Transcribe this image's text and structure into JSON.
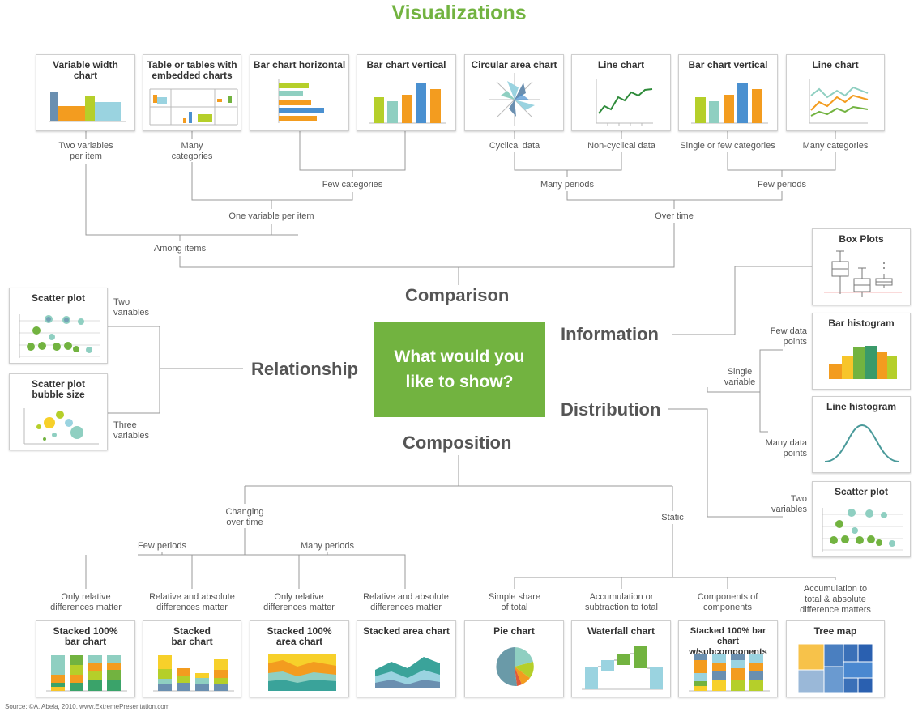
{
  "title": "Visualizations",
  "center": {
    "line1": "What would you",
    "line2": "like to show?"
  },
  "categories": {
    "comparison": "Comparison",
    "relationship": "Relationship",
    "information": "Information",
    "distribution": "Distribution",
    "composition": "Composition"
  },
  "cards": {
    "variable_width": {
      "line1": "Variable width",
      "line2": "chart"
    },
    "table_embedded": {
      "line1": "Table or tables with",
      "line2": "embedded charts"
    },
    "bar_horizontal": {
      "line1": "Bar chart horizontal"
    },
    "bar_vertical_few": {
      "line1": "Bar chart vertical"
    },
    "circular_area": {
      "line1": "Circular area chart"
    },
    "line_single": {
      "line1": "Line chart"
    },
    "bar_vertical_time": {
      "line1": "Bar chart vertical"
    },
    "line_many": {
      "line1": "Line chart"
    },
    "box_plots": {
      "line1": "Box Plots"
    },
    "bar_histogram": {
      "line1": "Bar histogram"
    },
    "line_histogram": {
      "line1": "Line histogram"
    },
    "scatter_dist": {
      "line1": "Scatter plot"
    },
    "scatter_rel": {
      "line1": "Scatter plot"
    },
    "bubble": {
      "line1": "Scatter plot",
      "line2": "bubble size"
    },
    "stacked100_bar": {
      "line1": "Stacked 100%",
      "line2": "bar chart"
    },
    "stacked_bar": {
      "line1": "Stacked",
      "line2": "bar chart"
    },
    "stacked100_area": {
      "line1": "Stacked 100%",
      "line2": "area chart"
    },
    "stacked_area": {
      "line1": "Stacked area chart"
    },
    "pie": {
      "line1": "Pie chart"
    },
    "waterfall": {
      "line1": "Waterfall chart"
    },
    "stacked100_sub": {
      "line1": "Stacked 100% bar chart",
      "line2": "w/subcomponents"
    },
    "tree_map": {
      "line1": "Tree map"
    }
  },
  "labels": {
    "two_vars_per_item": {
      "line1": "Two variables",
      "line2": "per item"
    },
    "many_categories_1": {
      "line1": "Many",
      "line2": "categories"
    },
    "few_categories": "Few categories",
    "one_var_per_item": "One variable per item",
    "among_items": "Among items",
    "cyclical": "Cyclical data",
    "non_cyclical": "Non-cyclical data",
    "single_few_cats": "Single or few categories",
    "many_categories_2": "Many categories",
    "many_periods_top": "Many periods",
    "few_periods_top": "Few periods",
    "over_time": "Over time",
    "rel_two_vars": {
      "line1": "Two",
      "line2": "variables"
    },
    "rel_three_vars": {
      "line1": "Three",
      "line2": "variables"
    },
    "few_data_points": {
      "line1": "Few data",
      "line2": "points"
    },
    "single_variable": {
      "line1": "Single",
      "line2": "variable"
    },
    "many_data_points": {
      "line1": "Many data",
      "line2": "points"
    },
    "dist_two_vars": {
      "line1": "Two",
      "line2": "variables"
    },
    "changing_over_time": {
      "line1": "Changing",
      "line2": "over time"
    },
    "static": "Static",
    "few_periods_bottom": "Few periods",
    "many_periods_bottom": "Many periods",
    "only_relative_1": {
      "line1": "Only relative",
      "line2": "differences matter"
    },
    "rel_abs_1": {
      "line1": "Relative and absolute",
      "line2": "differences matter"
    },
    "only_relative_2": {
      "line1": "Only relative",
      "line2": "differences matter"
    },
    "rel_abs_2": {
      "line1": "Relative and absolute",
      "line2": "differences matter"
    },
    "simple_share": {
      "line1": "Simple share",
      "line2": "of total"
    },
    "accumulation_sub": {
      "line1": "Accumulation or",
      "line2": "subtraction to total"
    },
    "components": {
      "line1": "Components of",
      "line2": "components"
    },
    "accumulation_total": {
      "line1": "Accumulation to",
      "line2": "total & absolute",
      "line3": "difference matters"
    }
  },
  "source": "Source: ©A. Abela, 2010. www.ExtremePresentation.com",
  "colors": {
    "green": "#72b340",
    "dark_green": "#3a9a3a",
    "yellow_green": "#b5cf2a",
    "blue": "#4a90d0",
    "orange": "#f39c1f",
    "teal": "#8fcfc1",
    "lightblue": "#9ad3e0",
    "steel": "#6a8fb0",
    "line": "#999999"
  }
}
